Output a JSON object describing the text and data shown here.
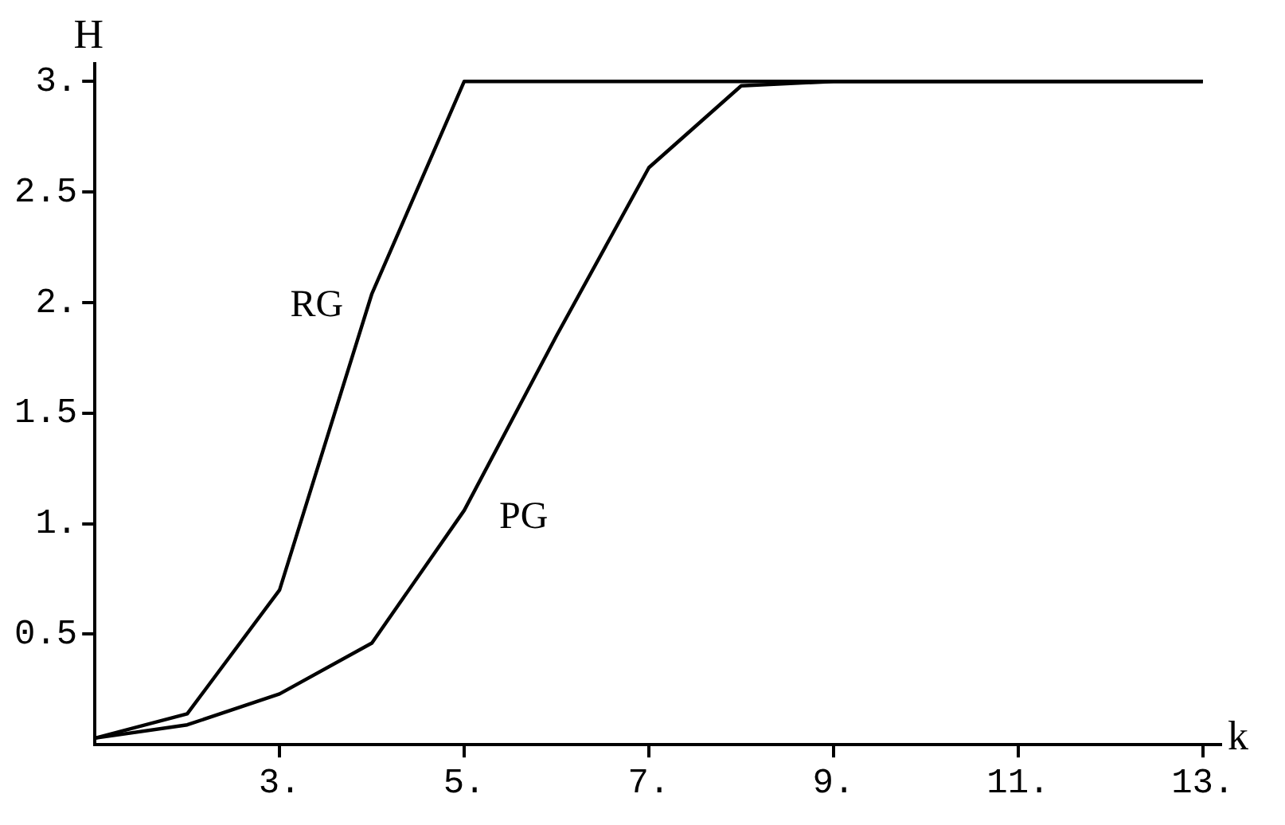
{
  "chart_data": {
    "type": "line",
    "xlabel": "k",
    "ylabel": "H",
    "x": [
      1,
      2,
      3,
      4,
      5,
      6,
      7,
      8,
      9,
      10,
      11,
      12,
      13
    ],
    "series": [
      {
        "name": "RG",
        "color": "#000000",
        "values": [
          0.03,
          0.14,
          0.7,
          2.04,
          3.0,
          3.0,
          3.0,
          3.0,
          3.0,
          3.0,
          3.0,
          3.0,
          3.0
        ]
      },
      {
        "name": "PG",
        "color": "#000000",
        "values": [
          0.03,
          0.09,
          0.23,
          0.46,
          1.06,
          1.85,
          2.61,
          2.98,
          3.0,
          3.0,
          3.0,
          3.0,
          3.0
        ]
      }
    ],
    "xlim": [
      1,
      13.2
    ],
    "xticks": [
      {
        "value": 3,
        "label": "3."
      },
      {
        "value": 5,
        "label": "5."
      },
      {
        "value": 7,
        "label": "7."
      },
      {
        "value": 9,
        "label": "9."
      },
      {
        "value": 11,
        "label": "11."
      },
      {
        "value": 13,
        "label": "13."
      }
    ],
    "ylim": [
      0,
      3.08
    ],
    "yticks": [
      {
        "value": 0.5,
        "label": "0.5"
      },
      {
        "value": 1,
        "label": "1."
      },
      {
        "value": 1.5,
        "label": "1.5"
      },
      {
        "value": 2,
        "label": "2."
      },
      {
        "value": 2.5,
        "label": "2.5"
      },
      {
        "value": 3,
        "label": "3."
      }
    ],
    "grid": false,
    "legend": false,
    "marker": "none",
    "line_style": "solid"
  }
}
